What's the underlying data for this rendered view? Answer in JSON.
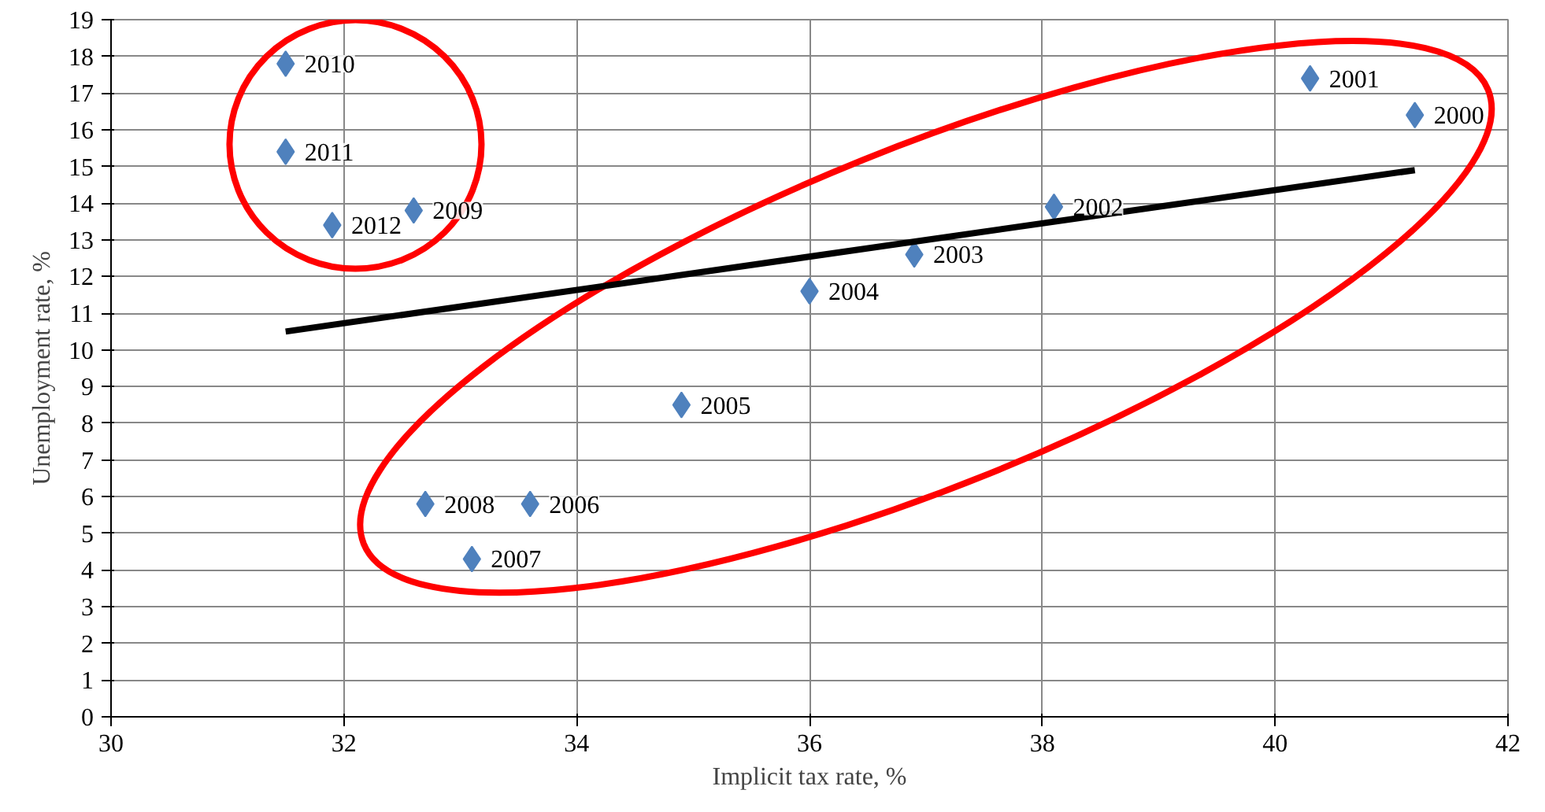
{
  "chart_data": {
    "type": "scatter",
    "xlabel": "Implicit tax rate, %",
    "ylabel": "Unemployment rate, %",
    "series": [
      {
        "color": "#4f81bd",
        "marker": "diamond",
        "x": [
          41.2,
          40.3,
          38.1,
          36.9,
          36.0,
          34.9,
          33.6,
          33.1,
          32.7,
          32.6,
          31.5,
          31.5,
          31.9
        ],
        "values": [
          16.4,
          17.4,
          13.9,
          12.6,
          11.6,
          8.5,
          5.8,
          4.3,
          5.8,
          13.8,
          17.8,
          15.4,
          13.4
        ]
      },
      {
        "type": "line",
        "color": "#000000",
        "marker": "none",
        "x": [
          31.5,
          41.2
        ],
        "values": [
          10.5,
          14.9
        ]
      }
    ],
    "annotations": [
      {
        "text": "2000",
        "x": 41.2,
        "y": 16.4
      },
      {
        "text": "2001",
        "x": 40.3,
        "y": 17.4
      },
      {
        "text": "2002",
        "x": 38.1,
        "y": 13.9
      },
      {
        "text": "2003",
        "x": 36.9,
        "y": 12.6
      },
      {
        "text": "2004",
        "x": 36.0,
        "y": 11.6
      },
      {
        "text": "2005",
        "x": 34.9,
        "y": 8.5
      },
      {
        "text": "2006",
        "x": 33.6,
        "y": 5.8
      },
      {
        "text": "2007",
        "x": 33.1,
        "y": 4.3
      },
      {
        "text": "2008",
        "x": 32.7,
        "y": 5.8
      },
      {
        "text": "2009",
        "x": 32.6,
        "y": 13.8
      },
      {
        "text": "2010",
        "x": 31.5,
        "y": 17.8
      },
      {
        "text": "2011",
        "x": 31.5,
        "y": 15.4
      },
      {
        "text": "2012",
        "x": 31.9,
        "y": 13.4
      }
    ],
    "xlim": [
      30,
      42
    ],
    "xticks": [
      30,
      32,
      34,
      36,
      38,
      40,
      42
    ],
    "ylim": [
      0,
      19
    ],
    "yticks": [
      0,
      1,
      2,
      3,
      4,
      5,
      6,
      7,
      8,
      9,
      10,
      11,
      12,
      13,
      14,
      15,
      16,
      17,
      18,
      19
    ],
    "grid": true
  }
}
